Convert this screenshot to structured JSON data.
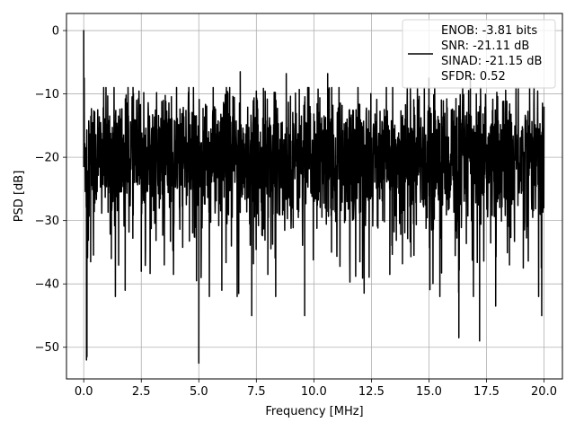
{
  "chart_data": {
    "type": "line",
    "xlabel": "Frequency [MHz]",
    "ylabel": "PSD [dB]",
    "xlim": [
      -0.75,
      20.8
    ],
    "ylim": [
      -55,
      2.7
    ],
    "xticks": [
      0.0,
      2.5,
      5.0,
      7.5,
      10.0,
      12.5,
      15.0,
      17.5,
      20.0
    ],
    "xtick_labels": [
      "0.0",
      "2.5",
      "5.0",
      "7.5",
      "10.0",
      "12.5",
      "15.0",
      "17.5",
      "20.0"
    ],
    "yticks": [
      0,
      -10,
      -20,
      -30,
      -40,
      -50
    ],
    "ytick_labels": [
      "0",
      "−10",
      "−20",
      "−30",
      "−40",
      "−50"
    ],
    "grid": true,
    "legend_position": "top-right",
    "series": [
      {
        "color": "#000000",
        "x_range": [
          0,
          20
        ],
        "typical_floor_db": -20,
        "typical_band_db": [
          -30,
          -11
        ],
        "peak_db": 0,
        "notable_points": [
          {
            "x": 0.0,
            "y": 0.0
          },
          {
            "x": 0.02,
            "y": -7.5
          },
          {
            "x": 0.12,
            "y": -52.0
          },
          {
            "x": 0.14,
            "y": -51.5
          },
          {
            "x": 0.3,
            "y": -36.5
          },
          {
            "x": 1.2,
            "y": -36.0
          },
          {
            "x": 1.8,
            "y": -41.0
          },
          {
            "x": 2.5,
            "y": -38.0
          },
          {
            "x": 3.5,
            "y": -37.0
          },
          {
            "x": 3.9,
            "y": -38.5
          },
          {
            "x": 4.9,
            "y": -39.5
          },
          {
            "x": 5.0,
            "y": -52.5
          },
          {
            "x": 5.1,
            "y": -39.0
          },
          {
            "x": 6.0,
            "y": -41.0
          },
          {
            "x": 6.8,
            "y": -6.5
          },
          {
            "x": 7.3,
            "y": -45.0
          },
          {
            "x": 8.0,
            "y": -38.5
          },
          {
            "x": 8.8,
            "y": -6.8
          },
          {
            "x": 9.6,
            "y": -45.0
          },
          {
            "x": 10.6,
            "y": -6.8
          },
          {
            "x": 12.0,
            "y": -36.5
          },
          {
            "x": 13.3,
            "y": -38.5
          },
          {
            "x": 15.0,
            "y": -7.5
          },
          {
            "x": 16.3,
            "y": -48.5
          },
          {
            "x": 16.8,
            "y": -7.0
          },
          {
            "x": 17.2,
            "y": -49.0
          },
          {
            "x": 17.9,
            "y": -43.5
          },
          {
            "x": 18.5,
            "y": -37.0
          },
          {
            "x": 19.1,
            "y": -37.5
          },
          {
            "x": 19.9,
            "y": -45.0
          },
          {
            "x": 20.0,
            "y": -12.0
          }
        ]
      }
    ],
    "legend_lines": [
      "ENOB: -3.81 bits",
      "SNR: -21.11 dB",
      "SINAD: -21.15 dB",
      "SFDR: 0.52"
    ]
  },
  "colors": {
    "line": "#000000",
    "grid": "#b0b0b0",
    "axes": "#000000",
    "background": "#ffffff"
  }
}
